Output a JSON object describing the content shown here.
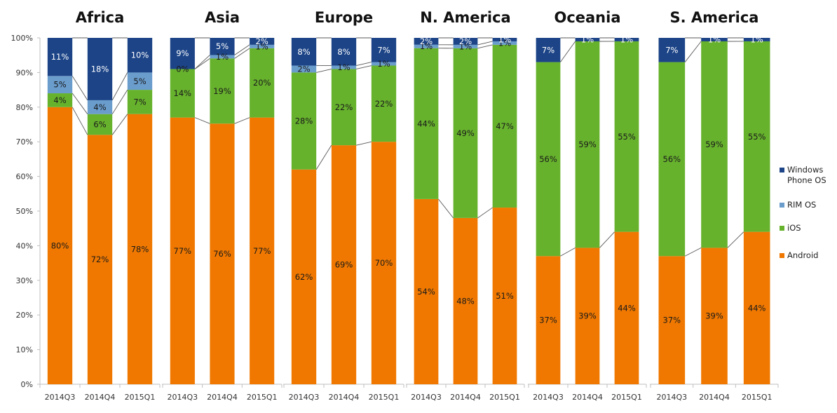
{
  "chart_data": {
    "type": "bar",
    "stacked": true,
    "percent": true,
    "ylim": [
      0,
      100
    ],
    "yticks": [
      "0%",
      "10%",
      "20%",
      "30%",
      "40%",
      "50%",
      "60%",
      "70%",
      "80%",
      "90%",
      "100%"
    ],
    "categories": [
      "2014Q3",
      "2014Q4",
      "2015Q1"
    ],
    "legend": {
      "placement": "right",
      "entries": [
        {
          "name": "Windows Phone OS",
          "lines": [
            "Windows",
            "Phone OS"
          ],
          "color": "#1c4487"
        },
        {
          "name": "RIM OS",
          "lines": [
            "RIM OS"
          ],
          "color": "#6a9ccc"
        },
        {
          "name": "iOS",
          "lines": [
            "iOS"
          ],
          "color": "#67b22d"
        },
        {
          "name": "Android",
          "lines": [
            "Android"
          ],
          "color": "#f07800"
        }
      ]
    },
    "series_order_bottom_to_top": [
      "Android",
      "iOS",
      "RIM OS",
      "Windows Phone OS"
    ],
    "panels": [
      {
        "title": "Africa",
        "series": [
          {
            "name": "Android",
            "values": [
              80,
              72,
              78
            ]
          },
          {
            "name": "iOS",
            "values": [
              4,
              6,
              7
            ]
          },
          {
            "name": "RIM OS",
            "values": [
              5,
              4,
              5
            ]
          },
          {
            "name": "Windows Phone OS",
            "values": [
              11,
              18,
              10
            ]
          }
        ]
      },
      {
        "title": "Asia",
        "series": [
          {
            "name": "Android",
            "values": [
              77,
              76,
              77
            ]
          },
          {
            "name": "iOS",
            "values": [
              14,
              19,
              20
            ]
          },
          {
            "name": "RIM OS",
            "values": [
              0,
              1,
              1
            ]
          },
          {
            "name": "Windows Phone OS",
            "values": [
              9,
              5,
              2
            ]
          }
        ]
      },
      {
        "title": "Europe",
        "series": [
          {
            "name": "Android",
            "values": [
              62,
              69,
              70
            ]
          },
          {
            "name": "iOS",
            "values": [
              28,
              22,
              22
            ]
          },
          {
            "name": "RIM OS",
            "values": [
              2,
              1,
              1
            ]
          },
          {
            "name": "Windows Phone OS",
            "values": [
              8,
              8,
              7
            ]
          }
        ]
      },
      {
        "title": "N. America",
        "series": [
          {
            "name": "Android",
            "values": [
              54,
              48,
              51
            ]
          },
          {
            "name": "iOS",
            "values": [
              44,
              49,
              47
            ]
          },
          {
            "name": "RIM OS",
            "values": [
              1,
              1,
              1
            ]
          },
          {
            "name": "Windows Phone OS",
            "values": [
              2,
              2,
              1
            ]
          }
        ]
      },
      {
        "title": "Oceania",
        "series": [
          {
            "name": "Android",
            "values": [
              37,
              39,
              44
            ]
          },
          {
            "name": "iOS",
            "values": [
              56,
              59,
              55
            ]
          },
          {
            "name": "RIM OS",
            "values": [
              null,
              null,
              null
            ]
          },
          {
            "name": "Windows Phone OS",
            "values": [
              7,
              1,
              1
            ]
          }
        ]
      },
      {
        "title": "S. America",
        "series": [
          {
            "name": "Android",
            "values": [
              37,
              39,
              44
            ]
          },
          {
            "name": "iOS",
            "values": [
              56,
              59,
              55
            ]
          },
          {
            "name": "RIM OS",
            "values": [
              null,
              null,
              null
            ]
          },
          {
            "name": "Windows Phone OS",
            "values": [
              7,
              1,
              1
            ]
          }
        ]
      }
    ],
    "title": "",
    "xlabel": "",
    "ylabel": ""
  }
}
